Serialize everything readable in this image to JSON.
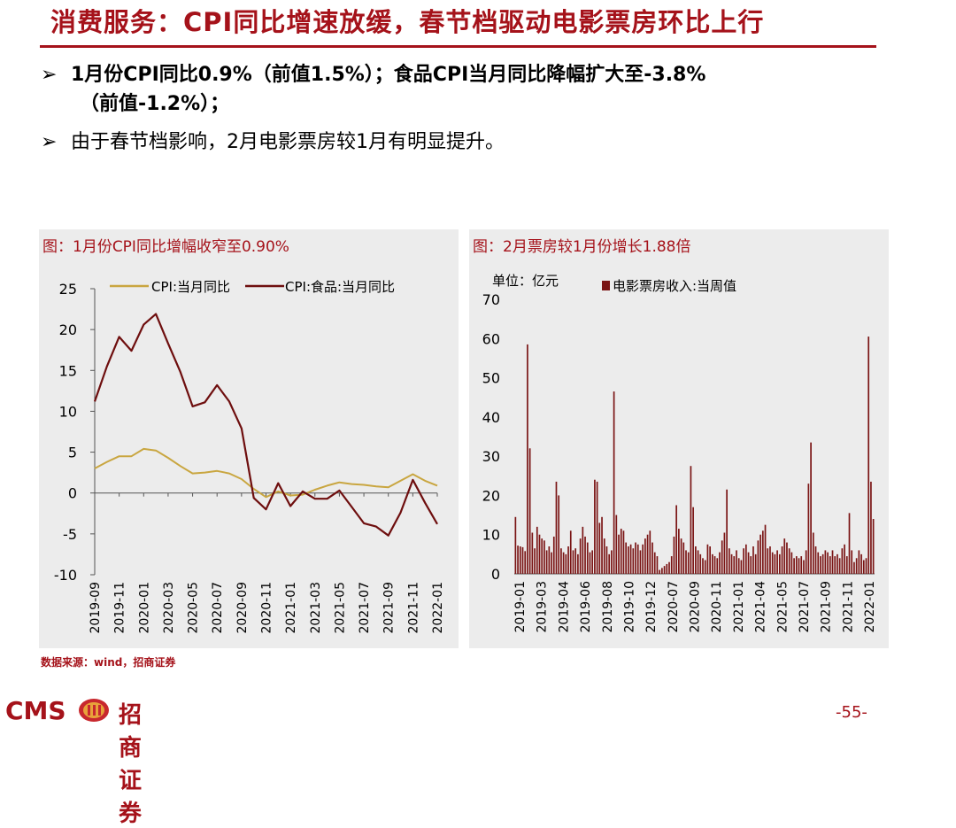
{
  "slide": {
    "title": "消费服务：CPI同比增速放缓，春节档驱动电影票房环比上行",
    "bullets": [
      "1月份CPI同比0.9%（前值1.5%）；食品CPI当月同比降幅扩大至-3.8%",
      "（前值-1.2%）；",
      "由于春节档影响，2月电影票房较1月有明显提升。"
    ],
    "bullet_marker": "➢",
    "source": "数据来源：wind，招商证券",
    "page_number": "-55-",
    "logo_text": "CMS",
    "logo_cn": "招商证券"
  },
  "colors": {
    "accent": "#A5121A",
    "cpi_line": "#C9A640",
    "food_line": "#6E0E0E",
    "box_bar": "#7A1414",
    "panel_bg": "#ECECEC"
  },
  "chart_data": [
    {
      "type": "line",
      "title": "图：1月份CPI同比增幅收窄至0.90%",
      "ylim": [
        -10,
        25
      ],
      "yticks": [
        25,
        20,
        15,
        10,
        5,
        0,
        -5,
        -10
      ],
      "x_ticks": [
        "2019-09",
        "2019-11",
        "2020-01",
        "2020-03",
        "2020-05",
        "2020-07",
        "2020-09",
        "2020-11",
        "2021-01",
        "2021-03",
        "2021-05",
        "2021-07",
        "2021-09",
        "2021-11",
        "2022-01"
      ],
      "x": [
        "2019-09",
        "2019-10",
        "2019-11",
        "2019-12",
        "2020-01",
        "2020-02",
        "2020-03",
        "2020-04",
        "2020-05",
        "2020-06",
        "2020-07",
        "2020-08",
        "2020-09",
        "2020-10",
        "2020-11",
        "2020-12",
        "2021-01",
        "2021-02",
        "2021-03",
        "2021-04",
        "2021-05",
        "2021-06",
        "2021-07",
        "2021-08",
        "2021-09",
        "2021-10",
        "2021-11",
        "2021-12",
        "2022-01"
      ],
      "legend_position": "top",
      "series": [
        {
          "name": "CPI:当月同比",
          "color_key": "cpi_line",
          "values": [
            3.0,
            3.8,
            4.5,
            4.5,
            5.4,
            5.2,
            4.3,
            3.3,
            2.4,
            2.5,
            2.7,
            2.4,
            1.7,
            0.5,
            -0.5,
            0.2,
            -0.3,
            -0.2,
            0.4,
            0.9,
            1.3,
            1.1,
            1.0,
            0.8,
            0.7,
            1.5,
            2.3,
            1.5,
            0.9
          ]
        },
        {
          "name": "CPI:食品:当月同比",
          "color_key": "food_line",
          "values": [
            11.2,
            15.5,
            19.1,
            17.4,
            20.6,
            21.9,
            18.3,
            14.8,
            10.6,
            11.1,
            13.2,
            11.2,
            7.9,
            -0.6,
            -2.0,
            1.2,
            -1.6,
            0.2,
            -0.7,
            -0.7,
            0.3,
            -1.7,
            -3.7,
            -4.1,
            -5.2,
            -2.4,
            1.6,
            -1.2,
            -3.8
          ]
        }
      ]
    },
    {
      "type": "bar",
      "title": "图：2月票房较1月份增长1.88倍",
      "unit_label": "单位：亿元",
      "ylim": [
        0,
        70
      ],
      "yticks": [
        70,
        60,
        50,
        40,
        30,
        20,
        10,
        0
      ],
      "x_ticks": [
        "2019-01",
        "2019-03",
        "2019-04",
        "2019-06",
        "2019-08",
        "2019-10",
        "2019-12",
        "2020-07",
        "2020-09",
        "2020-11",
        "2021-01",
        "2021-04",
        "2021-05",
        "2021-07",
        "2021-09",
        "2021-11",
        "2022-01"
      ],
      "legend_position": "top",
      "series": [
        {
          "name": "电影票房收入:当周值",
          "color_key": "box_bar",
          "values": [
            14.5,
            7.2,
            7.0,
            6.8,
            5.8,
            58.5,
            32.0,
            10.5,
            6.5,
            12.0,
            10.0,
            9.0,
            8.5,
            6.0,
            7.0,
            5.5,
            9.5,
            23.5,
            20.0,
            6.5,
            5.5,
            5.0,
            7.0,
            11.0,
            6.0,
            6.5,
            5.0,
            9.0,
            12.0,
            9.5,
            8.0,
            5.5,
            6.0,
            24.0,
            23.5,
            13.0,
            14.5,
            9.0,
            7.0,
            5.0,
            6.0,
            46.5,
            15.0,
            10.0,
            11.5,
            11.0,
            8.0,
            7.0,
            7.5,
            6.5,
            8.0,
            7.5,
            6.0,
            7.5,
            9.0,
            10.0,
            11.0,
            8.0,
            5.5,
            4.5,
            1.0,
            1.5,
            2.0,
            2.5,
            3.0,
            4.5,
            9.5,
            17.5,
            11.5,
            9.0,
            8.0,
            6.0,
            5.5,
            27.5,
            17.0,
            7.0,
            6.0,
            5.0,
            4.0,
            3.5,
            7.5,
            7.0,
            5.0,
            4.5,
            4.0,
            5.5,
            8.5,
            10.5,
            21.5,
            6.5,
            5.0,
            4.5,
            6.0,
            4.0,
            3.5,
            6.5,
            7.5,
            5.5,
            4.5,
            7.0,
            5.0,
            8.5,
            10.0,
            11.0,
            12.5,
            6.5,
            7.0,
            5.5,
            5.0,
            6.0,
            5.0,
            7.0,
            9.0,
            8.0,
            6.5,
            5.5,
            4.0,
            4.5,
            4.0,
            4.5,
            3.5,
            6.0,
            23.0,
            33.5,
            10.5,
            7.0,
            5.5,
            4.5,
            5.0,
            6.0,
            5.5,
            4.5,
            6.0,
            4.5,
            5.0,
            4.0,
            6.5,
            7.5,
            4.5,
            15.5,
            6.0,
            3.0,
            4.0,
            6.0,
            5.0,
            3.5,
            4.0,
            60.5,
            23.5,
            14.0
          ]
        }
      ]
    }
  ]
}
